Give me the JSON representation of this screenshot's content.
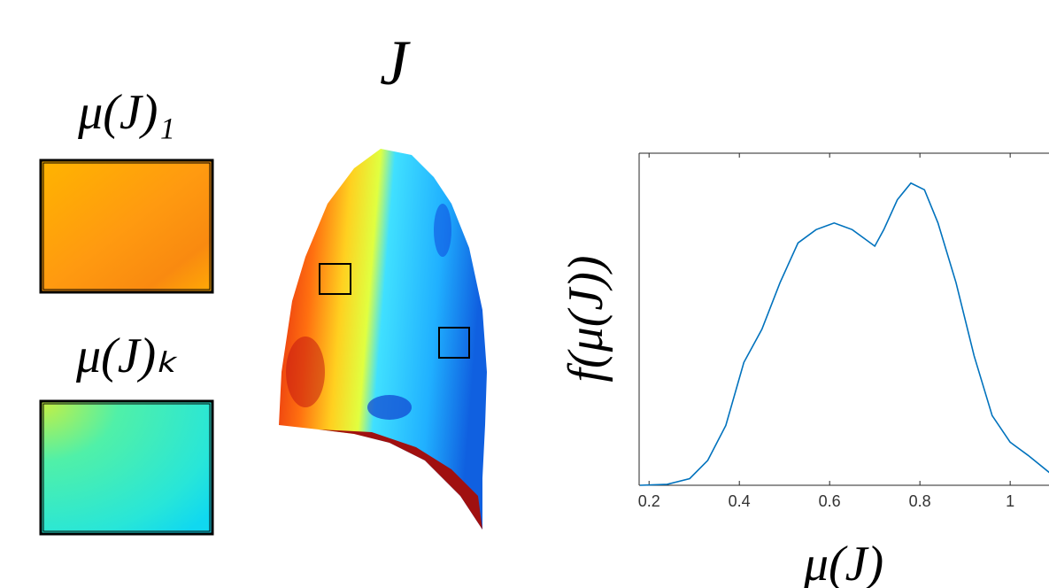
{
  "labels": {
    "map_title": "J",
    "patch_1": "μ(J)₁",
    "patch_k": "μ(J)ₖ"
  },
  "chart_data": {
    "type": "line",
    "ylabel": "f(μ(J))",
    "xlabel": "μ(J)",
    "x": [
      0.18,
      0.24,
      0.29,
      0.33,
      0.37,
      0.41,
      0.45,
      0.49,
      0.53,
      0.57,
      0.61,
      0.65,
      0.68,
      0.7,
      0.72,
      0.75,
      0.78,
      0.81,
      0.84,
      0.88,
      0.92,
      0.96,
      1.0,
      1.04,
      1.09
    ],
    "series": [
      {
        "color": "#0072bd",
        "values": [
          0,
          0.003,
          0.02,
          0.075,
          0.18,
          0.37,
          0.47,
          0.61,
          0.73,
          0.77,
          0.79,
          0.77,
          0.74,
          0.72,
          0.77,
          0.86,
          0.91,
          0.89,
          0.79,
          0.61,
          0.39,
          0.21,
          0.13,
          0.09,
          0.035
        ]
      }
    ],
    "xlim": [
      0.178,
      1.086
    ],
    "ylim": [
      0,
      1
    ],
    "xticks": [
      {
        "value": 0.2,
        "label": "0.2"
      },
      {
        "value": 0.4,
        "label": "0.4"
      },
      {
        "value": 0.6,
        "label": "0.6"
      },
      {
        "value": 0.8,
        "label": "0.8"
      },
      1
    ],
    "grid": false
  }
}
